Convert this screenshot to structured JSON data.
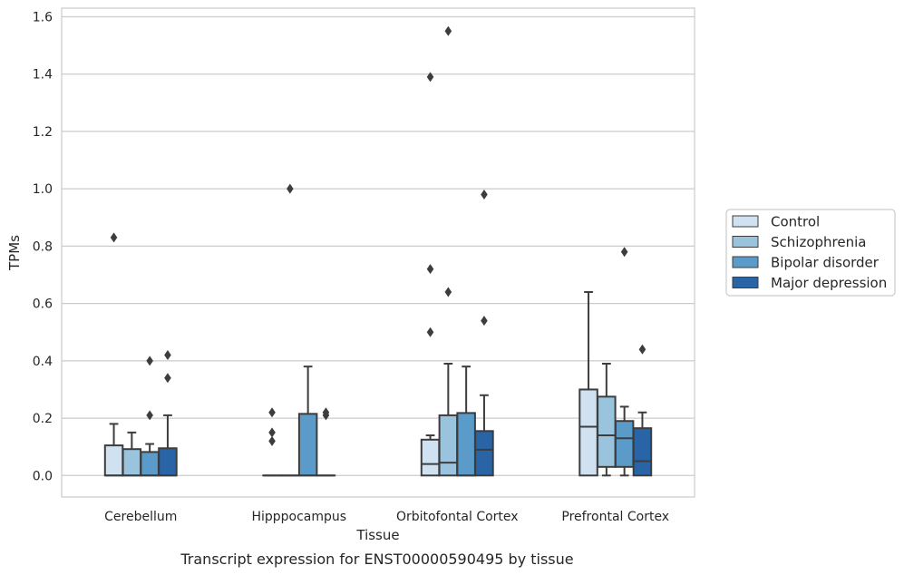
{
  "caption": "Transcript expression for ENST00000590495 by tissue",
  "chart_data": {
    "type": "boxplot",
    "xlabel": "Tissue",
    "ylabel": "TPMs",
    "ylim": [
      -0.075,
      1.63
    ],
    "yticks": [
      0.0,
      0.2,
      0.4,
      0.6,
      0.8,
      1.0,
      1.2,
      1.4,
      1.6
    ],
    "ytick_labels": [
      "0.0",
      "0.2",
      "0.4",
      "0.6",
      "0.8",
      "1.0",
      "1.2",
      "1.4",
      "1.6"
    ],
    "grid": "horizontal",
    "legend_placement": "right-outside",
    "categories": [
      "Cerebellum",
      "Hipppocampus",
      "Orbitofontal Cortex",
      "Prefrontal Cortex"
    ],
    "series": [
      {
        "name": "Control",
        "color": "#d0e1f2",
        "boxes": [
          {
            "q1": 0.0,
            "median": 0.0,
            "q3": 0.105,
            "whisker_low": 0.0,
            "whisker_high": 0.18,
            "outliers": [
              0.83
            ]
          },
          {
            "q1": 0.0,
            "median": 0.0,
            "q3": 0.0,
            "whisker_low": 0.0,
            "whisker_high": 0.0,
            "outliers": [
              0.12,
              0.15,
              0.22
            ]
          },
          {
            "q1": 0.0,
            "median": 0.04,
            "q3": 0.125,
            "whisker_low": 0.0,
            "whisker_high": 0.14,
            "outliers": [
              0.5,
              0.72,
              1.39
            ]
          },
          {
            "q1": 0.0,
            "median": 0.17,
            "q3": 0.3,
            "whisker_low": 0.0,
            "whisker_high": 0.64,
            "outliers": []
          }
        ]
      },
      {
        "name": "Schizophrenia",
        "color": "#9ac3de",
        "boxes": [
          {
            "q1": 0.0,
            "median": 0.0,
            "q3": 0.092,
            "whisker_low": 0.0,
            "whisker_high": 0.15,
            "outliers": []
          },
          {
            "q1": 0.0,
            "median": 0.0,
            "q3": 0.0,
            "whisker_low": 0.0,
            "whisker_high": 0.0,
            "outliers": [
              1.0
            ]
          },
          {
            "q1": 0.0,
            "median": 0.045,
            "q3": 0.21,
            "whisker_low": 0.0,
            "whisker_high": 0.39,
            "outliers": [
              0.64,
              1.55
            ]
          },
          {
            "q1": 0.03,
            "median": 0.14,
            "q3": 0.275,
            "whisker_low": 0.0,
            "whisker_high": 0.39,
            "outliers": []
          }
        ]
      },
      {
        "name": "Bipolar disorder",
        "color": "#5a9bc9",
        "boxes": [
          {
            "q1": 0.0,
            "median": 0.0,
            "q3": 0.082,
            "whisker_low": 0.0,
            "whisker_high": 0.11,
            "outliers": [
              0.21,
              0.4
            ]
          },
          {
            "q1": 0.0,
            "median": 0.0,
            "q3": 0.215,
            "whisker_low": 0.0,
            "whisker_high": 0.38,
            "outliers": []
          },
          {
            "q1": 0.0,
            "median": 0.0,
            "q3": 0.218,
            "whisker_low": 0.0,
            "whisker_high": 0.38,
            "outliers": []
          },
          {
            "q1": 0.03,
            "median": 0.13,
            "q3": 0.19,
            "whisker_low": 0.0,
            "whisker_high": 0.24,
            "outliers": [
              0.78
            ]
          }
        ]
      },
      {
        "name": "Major depression",
        "color": "#2864a6",
        "boxes": [
          {
            "q1": 0.0,
            "median": 0.0,
            "q3": 0.095,
            "whisker_low": 0.0,
            "whisker_high": 0.21,
            "outliers": [
              0.34,
              0.42
            ]
          },
          {
            "q1": 0.0,
            "median": 0.0,
            "q3": 0.0,
            "whisker_low": 0.0,
            "whisker_high": 0.0,
            "outliers": [
              0.21,
              0.22
            ]
          },
          {
            "q1": 0.0,
            "median": 0.09,
            "q3": 0.155,
            "whisker_low": 0.0,
            "whisker_high": 0.28,
            "outliers": [
              0.54,
              0.98
            ]
          },
          {
            "q1": 0.0,
            "median": 0.05,
            "q3": 0.165,
            "whisker_low": 0.0,
            "whisker_high": 0.22,
            "outliers": [
              0.44
            ]
          }
        ]
      }
    ]
  }
}
